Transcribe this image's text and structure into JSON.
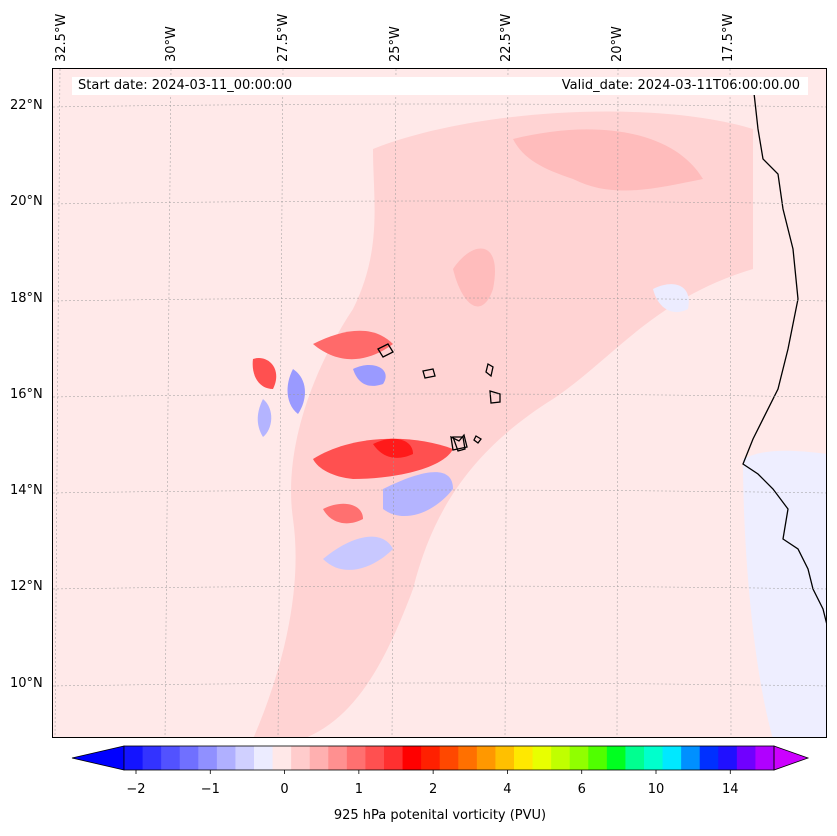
{
  "info": {
    "start_label": "Start date: 2024-03-11_00:00:00",
    "valid_label": "Valid_date: 2024-03-11T06:00:00.00"
  },
  "longitude_labels": [
    "32.5°W",
    "30°W",
    "27.5°W",
    "25°W",
    "22.5°W",
    "20°W",
    "17.5°W"
  ],
  "latitude_labels": [
    "22°N",
    "20°N",
    "18°N",
    "16°N",
    "14°N",
    "12°N",
    "10°N"
  ],
  "colorbar": {
    "label": "925 hPa potenital vorticity (PVU)",
    "ticks": [
      "−2",
      "−1",
      "0",
      "1",
      "2",
      "4",
      "6",
      "10",
      "14"
    ],
    "colors": [
      "#1414ff",
      "#3333ff",
      "#5252ff",
      "#7070ff",
      "#9090ff",
      "#b0b0ff",
      "#d0d0ff",
      "#ececff",
      "#ffe8e8",
      "#ffcccc",
      "#ffb0b0",
      "#ff9090",
      "#ff7070",
      "#ff5050",
      "#ff3030",
      "#ff0000",
      "#ff2000",
      "#ff4800",
      "#ff7000",
      "#ff9800",
      "#ffc000",
      "#ffe800",
      "#e8ff00",
      "#c0ff00",
      "#90ff00",
      "#50ff00",
      "#00ff20",
      "#00ff90",
      "#00ffcc",
      "#00e8ff",
      "#0090ff",
      "#0030ff",
      "#2010ff",
      "#7000ff",
      "#b000ff"
    ],
    "under_color": "#0000ff",
    "over_color": "#cc00ff"
  }
}
